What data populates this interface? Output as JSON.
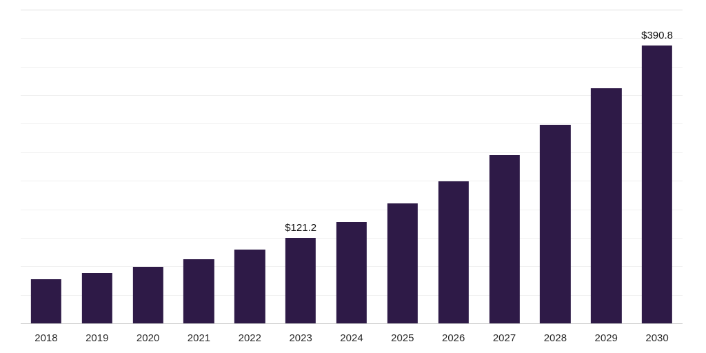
{
  "chart_data": {
    "type": "bar",
    "title": "",
    "xlabel": "",
    "ylabel": "",
    "categories": [
      "2018",
      "2019",
      "2020",
      "2021",
      "2022",
      "2023",
      "2024",
      "2025",
      "2026",
      "2027",
      "2028",
      "2029",
      "2030"
    ],
    "values": [
      63.1,
      71.2,
      80.3,
      91.0,
      104.8,
      121.2,
      143.3,
      169.4,
      200.2,
      236.7,
      279.8,
      330.7,
      390.8
    ],
    "bar_labels": [
      "",
      "",
      "",
      "",
      "",
      "$121.2",
      "",
      "",
      "",
      "",
      "",
      "",
      ""
    ],
    "ylim": [
      0,
      440
    ],
    "grid_step": 40,
    "grid_on": true,
    "legend": "none",
    "last_bar_label": "$390.8",
    "colors": {
      "bar": "#2e1a47",
      "grid": "#f0f0f0",
      "grid_top": "#dedede",
      "axis": "#c9c9c9",
      "tick_text": "#2b2b2b",
      "label_text": "#111111"
    }
  }
}
